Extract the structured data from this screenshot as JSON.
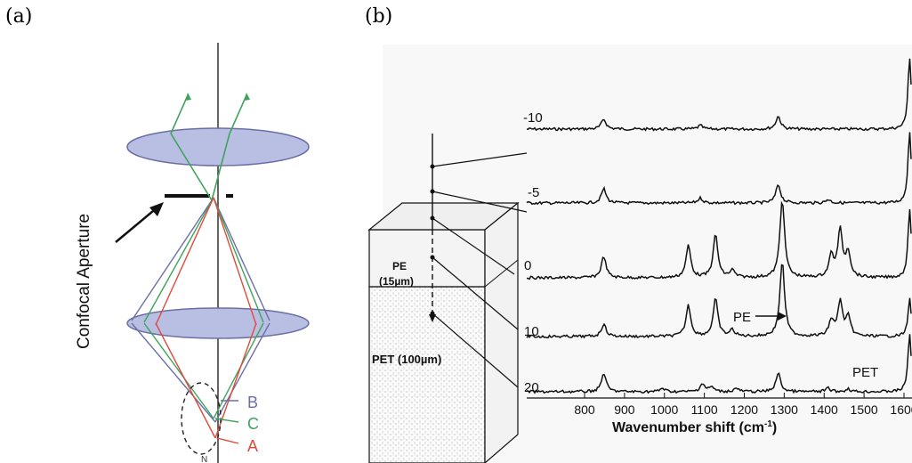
{
  "panel_a": {
    "label": "(a)",
    "aperture_label": "Confocal Aperture",
    "focus_labels": [
      {
        "text": "B",
        "color": "#6b6fa6"
      },
      {
        "text": "C",
        "color": "#3fa35b"
      },
      {
        "text": "A",
        "color": "#e04a3a"
      }
    ],
    "bottom_mark": "N",
    "colors": {
      "lens_fill": "#b9bfe3",
      "lens_stroke": "#6b6fa6",
      "ray_green": "#3fa35b",
      "ray_blue": "#6b6fa6",
      "ray_red": "#e04a3a"
    }
  },
  "panel_b": {
    "label": "(b)",
    "depth_labels": [
      "-10",
      "-5",
      "0",
      "10",
      "20"
    ],
    "layer_pe": "PE",
    "layer_pe_thickness": "(15µm)",
    "layer_pet": "PET (100µm)",
    "annotation_pe": "PE",
    "annotation_pet": "PET",
    "x_axis_title": "Wavenumber shift (cm",
    "x_axis_exp": "-1",
    "x_axis_tail": ")",
    "x_ticks": [
      "800",
      "900",
      "1000",
      "1100",
      "1200",
      "1300",
      "1400",
      "1500",
      "1600"
    ]
  },
  "chart_data": {
    "type": "line",
    "x_ticks": [
      800,
      900,
      1000,
      1100,
      1200,
      1300,
      1400,
      1500,
      1600
    ],
    "xlabel": "Wavenumber shift (cm-1)",
    "series": [
      {
        "name": "-10",
        "peaks": [
          [
            848,
            0.14
          ],
          [
            1090,
            0.05
          ],
          [
            1285,
            0.18
          ],
          [
            1614,
            1.0
          ]
        ]
      },
      {
        "name": "-5",
        "peaks": [
          [
            848,
            0.2
          ],
          [
            1090,
            0.07
          ],
          [
            1285,
            0.26
          ],
          [
            1410,
            0.05
          ],
          [
            1614,
            1.0
          ]
        ]
      },
      {
        "name": "0",
        "peaks": [
          [
            848,
            0.3
          ],
          [
            1060,
            0.45
          ],
          [
            1128,
            0.6
          ],
          [
            1170,
            0.1
          ],
          [
            1295,
            1.1
          ],
          [
            1418,
            0.3
          ],
          [
            1440,
            0.65
          ],
          [
            1460,
            0.35
          ],
          [
            1614,
            0.95
          ]
        ]
      },
      {
        "name": "10",
        "peaks": [
          [
            848,
            0.2
          ],
          [
            1060,
            0.5
          ],
          [
            1128,
            0.6
          ],
          [
            1170,
            0.1
          ],
          [
            1295,
            1.2
          ],
          [
            1418,
            0.25
          ],
          [
            1440,
            0.55
          ],
          [
            1460,
            0.3
          ],
          [
            1614,
            0.6
          ]
        ]
      },
      {
        "name": "20",
        "peaks": [
          [
            848,
            0.32
          ],
          [
            995,
            0.06
          ],
          [
            1095,
            0.14
          ],
          [
            1118,
            0.08
          ],
          [
            1180,
            0.06
          ],
          [
            1285,
            0.32
          ],
          [
            1410,
            0.06
          ],
          [
            1460,
            0.05
          ],
          [
            1614,
            1.0
          ]
        ]
      }
    ]
  }
}
